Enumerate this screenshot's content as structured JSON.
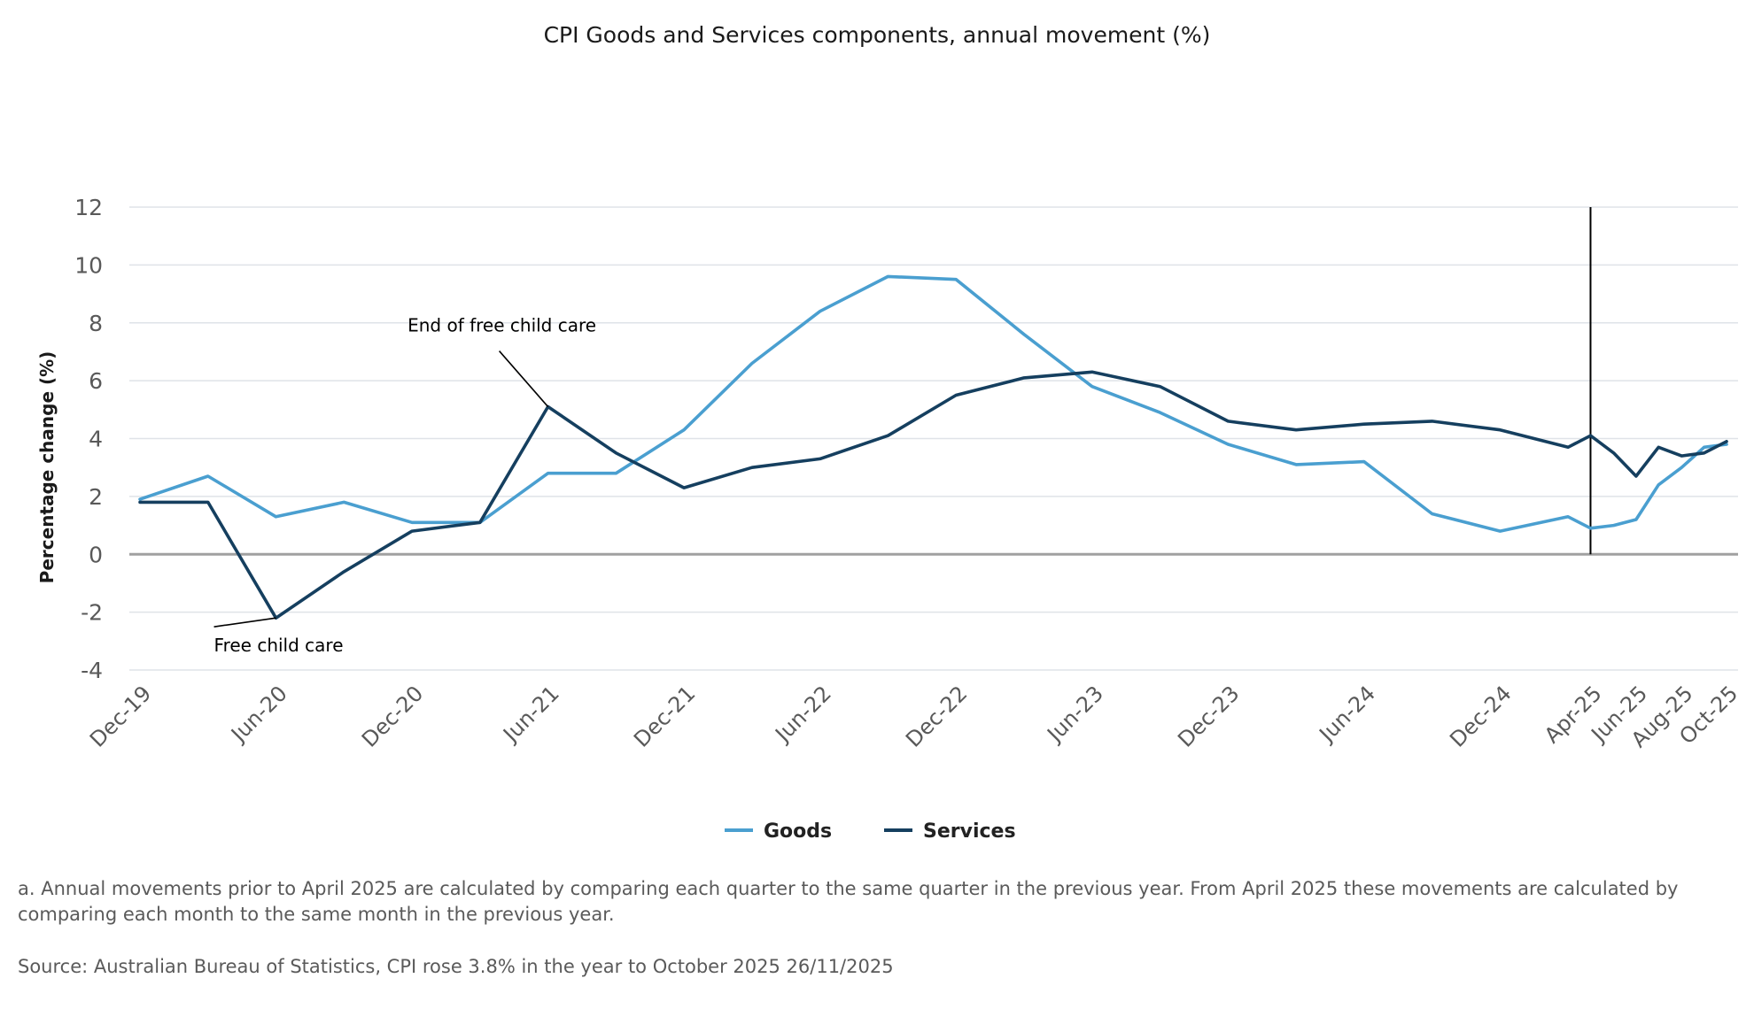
{
  "colors": {
    "goods": "#4a9fd0",
    "services": "#153f5f",
    "grid": "#dfe3e8",
    "zero_line": "#a0a0a0",
    "axis_text": "#595959",
    "title_text": "#1a1a1a",
    "annotation": "#000000"
  },
  "chart_data": {
    "type": "line",
    "title": "CPI Goods and Services components, annual movement (%)",
    "xlabel": "",
    "ylabel": "Percentage change (%)",
    "ylim": [
      -4,
      12
    ],
    "yticks": [
      12,
      10,
      8,
      6,
      4,
      2,
      0,
      -2,
      -4
    ],
    "grid": true,
    "legend_position": "bottom-center",
    "x": [
      "Dec-19",
      "Mar-20",
      "Jun-20",
      "Sep-20",
      "Dec-20",
      "Mar-21",
      "Jun-21",
      "Sep-21",
      "Dec-21",
      "Mar-22",
      "Jun-22",
      "Sep-22",
      "Dec-22",
      "Mar-23",
      "Jun-23",
      "Sep-23",
      "Dec-23",
      "Mar-24",
      "Jun-24",
      "Sep-24",
      "Dec-24",
      "Mar-25",
      "Apr-25",
      "May-25",
      "Jun-25",
      "Jul-25",
      "Aug-25",
      "Sep-25",
      "Oct-25"
    ],
    "x_index": [
      0,
      1,
      2,
      3,
      4,
      5,
      6,
      7,
      8,
      9,
      10,
      11,
      12,
      13,
      14,
      15,
      16,
      17,
      18,
      19,
      20,
      21,
      21.33,
      21.67,
      22,
      22.33,
      22.67,
      23,
      23.33
    ],
    "tick_labels": [
      {
        "label": "Dec-19",
        "index": 0
      },
      {
        "label": "Jun-20",
        "index": 2
      },
      {
        "label": "Dec-20",
        "index": 4
      },
      {
        "label": "Jun-21",
        "index": 6
      },
      {
        "label": "Dec-21",
        "index": 8
      },
      {
        "label": "Jun-22",
        "index": 10
      },
      {
        "label": "Dec-22",
        "index": 12
      },
      {
        "label": "Jun-23",
        "index": 14
      },
      {
        "label": "Dec-23",
        "index": 16
      },
      {
        "label": "Jun-24",
        "index": 18
      },
      {
        "label": "Dec-24",
        "index": 20
      },
      {
        "label": "Apr-25",
        "index": 21.33
      },
      {
        "label": "Jun-25",
        "index": 22
      },
      {
        "label": "Aug-25",
        "index": 22.67
      },
      {
        "label": "Oct-25",
        "index": 23.33
      }
    ],
    "series": [
      {
        "name": "Goods",
        "values": [
          1.9,
          2.7,
          1.3,
          1.8,
          1.1,
          1.1,
          2.8,
          2.8,
          4.3,
          6.6,
          8.4,
          9.6,
          9.5,
          7.6,
          5.8,
          4.9,
          3.8,
          3.1,
          3.2,
          1.4,
          0.8,
          1.3,
          0.9,
          1.0,
          1.2,
          2.4,
          3.0,
          3.7,
          3.8
        ]
      },
      {
        "name": "Services",
        "values": [
          1.8,
          1.8,
          -2.2,
          -0.6,
          0.8,
          1.1,
          5.1,
          3.5,
          2.3,
          3.0,
          3.3,
          4.1,
          5.5,
          6.1,
          6.3,
          5.8,
          4.6,
          4.3,
          4.5,
          4.6,
          4.3,
          3.7,
          4.1,
          3.5,
          2.7,
          3.7,
          3.4,
          3.5,
          3.9
        ]
      }
    ],
    "vertical_marker": {
      "index": 21.33,
      "label": "Apr-25"
    },
    "annotations": [
      {
        "text": "End of free child care",
        "index": 6,
        "value": 5.1
      },
      {
        "text": "Free child care",
        "index": 2,
        "value": -2.2
      }
    ]
  },
  "footnotes": {
    "note_a": "a. Annual movements prior to April 2025 are calculated by comparing each quarter to the same quarter in the previous year.  From April 2025 these movements are calculated by comparing each month to the same month in the previous year.",
    "source": "Source: Australian Bureau of Statistics, CPI rose 3.8% in the year to October 2025 26/11/2025"
  }
}
